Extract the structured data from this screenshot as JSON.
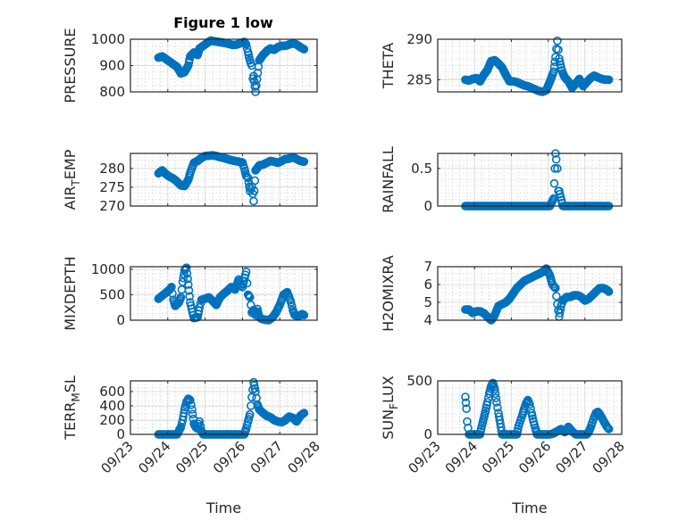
{
  "figure_title": "Figure 1 low",
  "marker_color": "#0072BD",
  "chart_data": [
    {
      "type": "scatter",
      "id": "pressure",
      "ylabel": "PRESSURE",
      "ylabel_sub": null,
      "xlabel": "",
      "ylim": [
        800,
        1000
      ],
      "yticks": [
        800,
        900,
        1000
      ],
      "xlim": [
        0,
        5
      ],
      "xticks": [
        "09/23",
        "09/24",
        "09/25",
        "09/26",
        "09/27",
        "09/28"
      ],
      "show_xticklabels": false,
      "x": [
        0.75,
        0.85,
        0.95,
        1.05,
        1.15,
        1.25,
        1.35,
        1.45,
        1.55,
        1.6,
        1.7,
        1.8,
        1.85,
        1.95,
        2.05,
        2.15,
        2.25,
        2.35,
        2.45,
        2.55,
        2.65,
        2.75,
        2.85,
        2.95,
        3.05,
        3.1,
        3.15,
        3.18,
        3.22,
        3.25,
        3.28,
        3.3,
        3.35,
        3.45,
        3.55,
        3.65,
        3.75,
        3.85,
        3.95,
        4.05,
        4.15,
        4.25,
        4.35,
        4.45,
        4.55,
        4.65
      ],
      "y": [
        930,
        935,
        925,
        915,
        905,
        895,
        870,
        875,
        900,
        935,
        950,
        940,
        965,
        975,
        985,
        995,
        992,
        990,
        988,
        985,
        982,
        978,
        980,
        985,
        990,
        980,
        950,
        930,
        910,
        900,
        850,
        860,
        800,
        920,
        940,
        955,
        965,
        960,
        970,
        975,
        975,
        980,
        985,
        980,
        970,
        962
      ]
    },
    {
      "type": "scatter",
      "id": "theta",
      "ylabel": "THETA",
      "ylabel_sub": null,
      "xlabel": "",
      "ylim": [
        283.5,
        290
      ],
      "yticks": [
        285,
        290
      ],
      "xlim": [
        0,
        5
      ],
      "xticks": [
        "09/23",
        "09/24",
        "09/25",
        "09/26",
        "09/27",
        "09/28"
      ],
      "show_xticklabels": false,
      "x": [
        0.75,
        0.85,
        0.95,
        1.05,
        1.15,
        1.25,
        1.35,
        1.45,
        1.55,
        1.65,
        1.75,
        1.85,
        1.95,
        2.05,
        2.15,
        2.25,
        2.35,
        2.45,
        2.55,
        2.65,
        2.75,
        2.85,
        2.95,
        3.05,
        3.15,
        3.2,
        3.25,
        3.3,
        3.35,
        3.4,
        3.45,
        3.55,
        3.65,
        3.75,
        3.85,
        3.95,
        4.05,
        4.15,
        4.25,
        4.35,
        4.45,
        4.55,
        4.65
      ],
      "y": [
        285,
        284.9,
        285.1,
        285.2,
        284.8,
        285.6,
        286.2,
        287.3,
        287.4,
        287,
        286.5,
        285.6,
        284.8,
        284.8,
        284.7,
        284.5,
        284.3,
        284.2,
        284,
        283.8,
        283.6,
        283.5,
        283.7,
        284.8,
        286,
        287.8,
        289.8,
        287.6,
        286.5,
        285.8,
        285.3,
        284.8,
        284,
        284.5,
        285.1,
        284.2,
        284.7,
        285.2,
        285.5,
        285.3,
        285.1,
        285,
        285
      ]
    },
    {
      "type": "scatter",
      "id": "air_temp",
      "ylabel": "AIR",
      "ylabel_sub": "T",
      "ylabel_tail": "EMP",
      "xlabel": "",
      "ylim": [
        270,
        284
      ],
      "yticks": [
        270,
        275,
        280
      ],
      "xlim": [
        0,
        5
      ],
      "xticks": [
        "09/23",
        "09/24",
        "09/25",
        "09/26",
        "09/27",
        "09/28"
      ],
      "show_xticklabels": false,
      "x": [
        0.75,
        0.85,
        0.95,
        1.05,
        1.15,
        1.25,
        1.35,
        1.45,
        1.55,
        1.6,
        1.7,
        1.8,
        1.9,
        2.0,
        2.1,
        2.2,
        2.3,
        2.4,
        2.5,
        2.6,
        2.7,
        2.8,
        2.9,
        3.0,
        3.05,
        3.1,
        3.15,
        3.2,
        3.25,
        3.3,
        3.35,
        3.45,
        3.55,
        3.65,
        3.75,
        3.85,
        3.95,
        4.05,
        4.15,
        4.25,
        4.35,
        4.45,
        4.55,
        4.65
      ],
      "y": [
        278.7,
        279.5,
        278.5,
        277.8,
        277.3,
        276.5,
        275.5,
        275.3,
        277,
        278.8,
        281.5,
        282,
        282.8,
        283.3,
        283.4,
        283.5,
        283.3,
        283,
        282.8,
        282.5,
        282.2,
        282,
        281.8,
        281.6,
        280,
        278,
        277.5,
        274,
        275.2,
        271.3,
        279.5,
        280.8,
        281,
        281.5,
        282,
        281.8,
        281.5,
        282,
        282.5,
        282.6,
        283,
        282.5,
        282,
        281.8
      ]
    },
    {
      "type": "scatter",
      "id": "rainfall",
      "ylabel": "RAINFALL",
      "ylabel_sub": null,
      "xlabel": "",
      "ylim": [
        0,
        0.7
      ],
      "yticks": [
        0,
        0.5
      ],
      "ytick_labels": [
        "0",
        "0.5"
      ],
      "xlim": [
        0,
        5
      ],
      "xticks": [
        "09/23",
        "09/24",
        "09/25",
        "09/26",
        "09/27",
        "09/28"
      ],
      "show_xticklabels": false,
      "x": [
        0.75,
        0.85,
        0.95,
        1.05,
        1.15,
        1.25,
        1.35,
        1.45,
        1.55,
        1.65,
        1.75,
        1.85,
        1.95,
        2.05,
        2.15,
        2.25,
        2.35,
        2.45,
        2.55,
        2.65,
        2.75,
        2.85,
        2.95,
        3.05,
        3.15,
        3.2,
        3.22,
        3.25,
        3.28,
        3.3,
        3.4,
        3.5,
        3.6,
        3.7,
        3.8,
        3.9,
        4.0,
        4.1,
        4.2,
        4.3,
        4.4,
        4.5,
        4.6,
        4.65
      ],
      "y": [
        0,
        0,
        0,
        0,
        0,
        0,
        0,
        0,
        0,
        0,
        0,
        0,
        0,
        0,
        0,
        0,
        0,
        0,
        0,
        0,
        0,
        0,
        0,
        0,
        0.1,
        0.7,
        0.62,
        0.5,
        0.2,
        0.2,
        0,
        0,
        0,
        0,
        0,
        0,
        0,
        0,
        0,
        0,
        0,
        0,
        0,
        0
      ]
    },
    {
      "type": "scatter",
      "id": "mixdepth",
      "ylabel": "MIXDEPTH",
      "ylabel_sub": null,
      "xlabel": "",
      "ylim": [
        0,
        1050
      ],
      "yticks": [
        0,
        500,
        1000
      ],
      "xlim": [
        0,
        5
      ],
      "xticks": [
        "09/23",
        "09/24",
        "09/25",
        "09/26",
        "09/27",
        "09/28"
      ],
      "show_xticklabels": false,
      "x": [
        0.75,
        0.85,
        0.95,
        1.05,
        1.1,
        1.15,
        1.2,
        1.3,
        1.35,
        1.4,
        1.45,
        1.5,
        1.55,
        1.6,
        1.7,
        1.8,
        1.85,
        1.9,
        2.0,
        2.1,
        2.2,
        2.3,
        2.4,
        2.5,
        2.6,
        2.7,
        2.8,
        2.9,
        3.0,
        3.1,
        3.15,
        3.2,
        3.25,
        3.3,
        3.35,
        3.4,
        3.45,
        3.5,
        3.6,
        3.7,
        3.8,
        3.9,
        4.0,
        4.1,
        4.2,
        4.3,
        4.35,
        4.4,
        4.5,
        4.6,
        4.65
      ],
      "y": [
        420,
        480,
        540,
        600,
        650,
        400,
        280,
        350,
        450,
        750,
        980,
        1030,
        700,
        350,
        40,
        60,
        250,
        400,
        420,
        450,
        380,
        300,
        450,
        520,
        580,
        650,
        600,
        800,
        650,
        950,
        500,
        450,
        150,
        200,
        100,
        220,
        60,
        30,
        10,
        0,
        50,
        150,
        300,
        500,
        550,
        350,
        200,
        100,
        80,
        120,
        100
      ]
    },
    {
      "type": "scatter",
      "id": "h2omixra",
      "ylabel": "H2OMIXRA",
      "ylabel_sub": null,
      "xlabel": "",
      "ylim": [
        4,
        7
      ],
      "yticks": [
        4,
        5,
        6,
        7
      ],
      "xlim": [
        0,
        5
      ],
      "xticks": [
        "09/23",
        "09/24",
        "09/25",
        "09/26",
        "09/27",
        "09/28"
      ],
      "show_xticklabels": false,
      "x": [
        0.75,
        0.85,
        0.95,
        1.05,
        1.15,
        1.25,
        1.35,
        1.45,
        1.5,
        1.55,
        1.65,
        1.75,
        1.85,
        1.95,
        2.05,
        2.15,
        2.25,
        2.35,
        2.45,
        2.55,
        2.65,
        2.75,
        2.85,
        2.95,
        3.05,
        3.1,
        3.15,
        3.2,
        3.25,
        3.3,
        3.35,
        3.4,
        3.5,
        3.6,
        3.7,
        3.8,
        3.9,
        4.0,
        4.1,
        4.2,
        4.3,
        4.4,
        4.5,
        4.6,
        4.65
      ],
      "y": [
        4.6,
        4.6,
        4.4,
        4.5,
        4.5,
        4.4,
        4.2,
        4.0,
        4.1,
        4.3,
        4.8,
        4.9,
        5.0,
        5.2,
        5.5,
        5.8,
        6.0,
        6.2,
        6.3,
        6.4,
        6.5,
        6.6,
        6.7,
        6.9,
        6.5,
        6.1,
        5.9,
        5.8,
        4.9,
        4.2,
        4.8,
        5.1,
        5.3,
        5.3,
        5.4,
        5.4,
        5.3,
        5.1,
        5.2,
        5.4,
        5.6,
        5.8,
        5.8,
        5.7,
        5.6
      ]
    },
    {
      "type": "scatter",
      "id": "terr_msl",
      "ylabel": "TERR",
      "ylabel_sub": "M",
      "ylabel_tail": "SL",
      "xlabel": "Time",
      "ylim": [
        0,
        750
      ],
      "yticks": [
        0,
        200,
        400,
        600
      ],
      "xlim": [
        0,
        5
      ],
      "xticks": [
        "09/23",
        "09/24",
        "09/25",
        "09/26",
        "09/27",
        "09/28"
      ],
      "show_xticklabels": true,
      "x": [
        0.75,
        0.85,
        0.95,
        1.05,
        1.15,
        1.25,
        1.3,
        1.35,
        1.4,
        1.45,
        1.5,
        1.55,
        1.6,
        1.65,
        1.7,
        1.75,
        1.8,
        1.85,
        1.9,
        1.95,
        2.05,
        2.15,
        2.25,
        2.35,
        2.45,
        2.55,
        2.65,
        2.75,
        2.85,
        2.95,
        3.0,
        3.05,
        3.1,
        3.15,
        3.2,
        3.25,
        3.3,
        3.35,
        3.4,
        3.45,
        3.55,
        3.65,
        3.75,
        3.85,
        3.95,
        4.05,
        4.15,
        4.25,
        4.35,
        4.45,
        4.55,
        4.65
      ],
      "y": [
        0,
        0,
        0,
        0,
        0,
        0,
        50,
        100,
        200,
        350,
        450,
        500,
        480,
        350,
        150,
        100,
        80,
        180,
        50,
        0,
        0,
        0,
        0,
        0,
        0,
        0,
        0,
        0,
        0,
        0,
        0,
        0,
        80,
        180,
        280,
        520,
        730,
        600,
        420,
        350,
        300,
        260,
        240,
        200,
        180,
        170,
        200,
        250,
        230,
        180,
        260,
        300
      ]
    },
    {
      "type": "scatter",
      "id": "sun_flux",
      "ylabel": "SUN",
      "ylabel_sub": "F",
      "ylabel_tail": "LUX",
      "xlabel": "Time",
      "ylim": [
        0,
        500
      ],
      "yticks": [
        0,
        500
      ],
      "xlim": [
        0,
        5
      ],
      "xticks": [
        "09/23",
        "09/24",
        "09/25",
        "09/26",
        "09/27",
        "09/28"
      ],
      "show_xticklabels": true,
      "x": [
        0.75,
        0.78,
        0.8,
        0.85,
        0.95,
        1.05,
        1.15,
        1.2,
        1.25,
        1.3,
        1.35,
        1.4,
        1.45,
        1.5,
        1.55,
        1.6,
        1.65,
        1.7,
        1.75,
        1.85,
        1.95,
        2.05,
        2.15,
        2.2,
        2.25,
        2.3,
        2.35,
        2.4,
        2.45,
        2.5,
        2.55,
        2.6,
        2.65,
        2.7,
        2.75,
        2.85,
        2.95,
        3.05,
        3.15,
        3.25,
        3.35,
        3.45,
        3.55,
        3.65,
        3.75,
        3.85,
        3.95,
        4.05,
        4.1,
        4.15,
        4.2,
        4.25,
        4.3,
        4.35,
        4.4,
        4.45,
        4.5,
        4.55,
        4.6,
        4.65
      ],
      "y": [
        350,
        240,
        120,
        0,
        0,
        0,
        0,
        80,
        150,
        220,
        300,
        380,
        450,
        480,
        420,
        300,
        200,
        100,
        0,
        0,
        0,
        0,
        0,
        80,
        130,
        180,
        240,
        290,
        320,
        280,
        200,
        120,
        60,
        0,
        0,
        0,
        0,
        0,
        10,
        30,
        50,
        20,
        70,
        30,
        0,
        0,
        0,
        0,
        20,
        60,
        110,
        160,
        200,
        210,
        190,
        160,
        130,
        100,
        70,
        50
      ]
    }
  ]
}
